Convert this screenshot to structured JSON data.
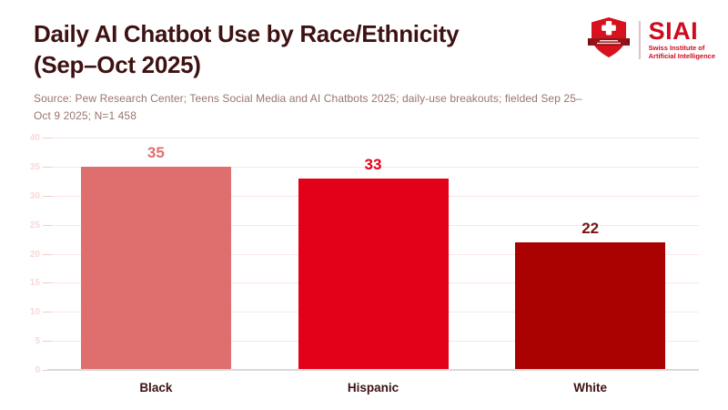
{
  "title": {
    "line1": "Daily AI Chatbot Use by Race/Ethnicity",
    "line2": "(Sep–Oct 2025)"
  },
  "source": {
    "line1": "Source: Pew Research Center; Teens Social Media and AI Chatbots 2025; daily-use breakouts; fielded Sep 25–",
    "line2": "Oct 9 2025; N=1 458"
  },
  "logo": {
    "acronym": "SIAI",
    "name_line1": "Swiss Institute of",
    "name_line2": "Artificial Intelligence",
    "brand_red": "#CE0A1C"
  },
  "chart_data": {
    "type": "bar",
    "title": "Daily AI Chatbot Use by Race/Ethnicity (Sep–Oct 2025)",
    "categories": [
      "Black",
      "Hispanic",
      "White"
    ],
    "values": [
      35,
      33,
      22
    ],
    "bar_colors": [
      "#DF6F6F",
      "#E30019",
      "#A90000"
    ],
    "value_label_colors": [
      "#DF6F6F",
      "#E30019",
      "#7A1212"
    ],
    "xlabel": "",
    "ylabel": "",
    "ylim": [
      0,
      40
    ],
    "yticks": [
      0,
      5,
      10,
      15,
      20,
      25,
      30,
      35,
      40
    ],
    "grid": true,
    "legend_position": "none",
    "colors": {
      "gridline": "#F9E7E7",
      "axis_line": "#D9D9D9",
      "tick_label": "#F8D8D8",
      "category_label": "#3E1212"
    }
  }
}
